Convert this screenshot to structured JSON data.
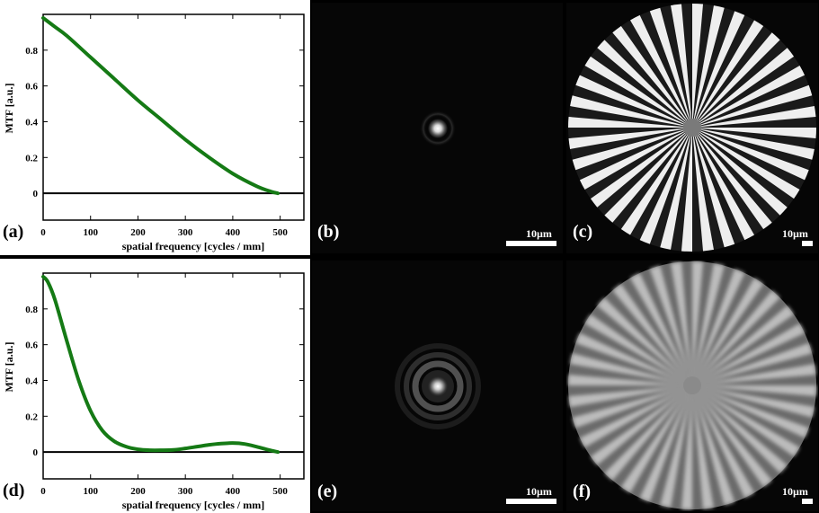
{
  "panels": {
    "a": {
      "label": "(a)"
    },
    "b": {
      "label": "(b)",
      "scalebar": "10µm"
    },
    "c": {
      "label": "(c)",
      "scalebar": "10µm"
    },
    "d": {
      "label": "(d)"
    },
    "e": {
      "label": "(e)",
      "scalebar": "10µm"
    },
    "f": {
      "label": "(f)",
      "scalebar": "10µm"
    }
  },
  "chart_data": [
    {
      "type": "line",
      "title": "",
      "xlabel": "spatial frequency [cycles / mm]",
      "ylabel": "MTF [a.u.]",
      "xlim": [
        0,
        550
      ],
      "ylim": [
        -0.15,
        1.0
      ],
      "xticks": [
        0,
        100,
        200,
        300,
        400,
        500
      ],
      "yticks": [
        0,
        0.2,
        0.4,
        0.6,
        0.8
      ],
      "series": [
        {
          "color": "#157a15",
          "x": [
            0,
            25,
            50,
            100,
            150,
            200,
            250,
            300,
            350,
            400,
            450,
            480,
            495
          ],
          "y": [
            0.98,
            0.93,
            0.88,
            0.76,
            0.64,
            0.52,
            0.41,
            0.3,
            0.2,
            0.11,
            0.04,
            0.01,
            0.0
          ]
        }
      ],
      "reference_line_y": 0
    },
    {
      "type": "line",
      "title": "",
      "xlabel": "spatial frequency [cycles / mm]",
      "ylabel": "MTF [a.u.]",
      "xlim": [
        0,
        550
      ],
      "ylim": [
        -0.15,
        1.0
      ],
      "xticks": [
        0,
        100,
        200,
        300,
        400,
        500
      ],
      "yticks": [
        0,
        0.2,
        0.4,
        0.6,
        0.8
      ],
      "series": [
        {
          "color": "#157a15",
          "x": [
            0,
            10,
            25,
            50,
            75,
            100,
            125,
            150,
            175,
            200,
            225,
            250,
            275,
            300,
            325,
            350,
            375,
            400,
            425,
            450,
            475,
            495
          ],
          "y": [
            0.98,
            0.95,
            0.85,
            0.62,
            0.4,
            0.23,
            0.12,
            0.06,
            0.03,
            0.015,
            0.01,
            0.01,
            0.012,
            0.02,
            0.03,
            0.04,
            0.047,
            0.05,
            0.045,
            0.03,
            0.012,
            0.0
          ]
        }
      ],
      "reference_line_y": 0
    }
  ]
}
